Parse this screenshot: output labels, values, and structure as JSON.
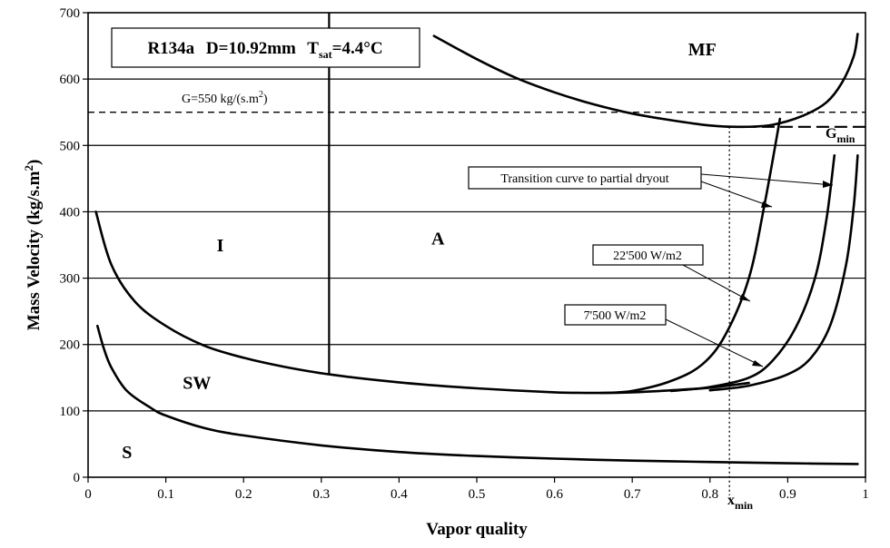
{
  "chart_data": {
    "type": "line",
    "title_box": {
      "fluid": "R134a",
      "diameter": "D=10.92mm",
      "tsat_prefix": "T",
      "tsat_sub": "sat",
      "tsat_value": "=4.4°C"
    },
    "xlabel": "Vapor quality",
    "ylabel_main": "Mass Velocity  (kg/s.m",
    "ylabel_sup": "2",
    "ylabel_end": ")",
    "xlim": [
      0,
      1
    ],
    "ylim": [
      0,
      700
    ],
    "xticks": [
      0,
      0.1,
      0.2,
      0.3,
      0.4,
      0.5,
      0.6,
      0.7,
      0.8,
      0.9,
      1
    ],
    "xtick_labels": [
      "0",
      "0.1",
      "0.2",
      "0.3",
      "0.4",
      "0.5",
      "0.6",
      "0.7",
      "0.8",
      "0.9",
      "1"
    ],
    "yticks": [
      0,
      100,
      200,
      300,
      400,
      500,
      600,
      700
    ],
    "ytick_labels": [
      "0",
      "100",
      "200",
      "300",
      "400",
      "500",
      "600",
      "700"
    ],
    "grid": "horizontal",
    "regions": [
      {
        "label": "MF",
        "x": 0.79,
        "y": 645
      },
      {
        "label": "I",
        "x": 0.17,
        "y": 350
      },
      {
        "label": "A",
        "x": 0.45,
        "y": 360
      },
      {
        "label": "SW",
        "x": 0.14,
        "y": 143
      },
      {
        "label": "S",
        "x": 0.05,
        "y": 38
      }
    ],
    "reference_lines": {
      "g550": {
        "value": 550,
        "label_main": "G=550 kg/(s.m",
        "label_sup": "2",
        "label_end": ")"
      },
      "gmin": {
        "value": 528,
        "x_start": 0.82,
        "label_main": "G",
        "label_sub": "min"
      },
      "xmin": {
        "value": 0.825,
        "label_main": "x",
        "label_sub": "min"
      },
      "ia_boundary": {
        "x": 0.31,
        "y_from": 155,
        "y_to": 700
      }
    },
    "annotations": [
      {
        "text": "Transition curve to partial dryout"
      },
      {
        "text": "22'500 W/m2"
      },
      {
        "text": "7'500 W/m2"
      }
    ],
    "series": [
      {
        "x": [
          0.01,
          0.03,
          0.06,
          0.1,
          0.15,
          0.2,
          0.25,
          0.31,
          0.4,
          0.5,
          0.6,
          0.66,
          0.7,
          0.75,
          0.8,
          0.85
        ],
        "y": [
          400,
          320,
          265,
          228,
          198,
          180,
          167,
          155,
          143,
          134,
          128,
          127,
          128,
          131,
          135,
          142
        ]
      },
      {
        "x": [
          0.66,
          0.7,
          0.75,
          0.79,
          0.82,
          0.85,
          0.87,
          0.89
        ],
        "y": [
          127,
          130,
          145,
          170,
          215,
          300,
          410,
          540
        ]
      },
      {
        "x": [
          0.75,
          0.8,
          0.85,
          0.88,
          0.91,
          0.935,
          0.95,
          0.96
        ],
        "y": [
          130,
          136,
          150,
          175,
          225,
          300,
          390,
          485
        ]
      },
      {
        "x": [
          0.8,
          0.85,
          0.9,
          0.93,
          0.955,
          0.975,
          0.985,
          0.99
        ],
        "y": [
          131,
          138,
          155,
          180,
          230,
          320,
          410,
          485
        ]
      },
      {
        "x": [
          0.445,
          0.5,
          0.55,
          0.6,
          0.65,
          0.7,
          0.75,
          0.8,
          0.84,
          0.88,
          0.92,
          0.95,
          0.97,
          0.985,
          0.99
        ],
        "y": [
          665,
          630,
          602,
          580,
          562,
          548,
          538,
          530,
          528,
          531,
          545,
          565,
          595,
          635,
          668
        ]
      },
      {
        "x": [
          0.012,
          0.02,
          0.03,
          0.05,
          0.08,
          0.1,
          0.15,
          0.2,
          0.3,
          0.4,
          0.5,
          0.6,
          0.7,
          0.8,
          0.9,
          0.99
        ],
        "y": [
          228,
          195,
          165,
          130,
          105,
          93,
          74,
          63,
          48,
          38,
          32,
          28,
          25,
          23,
          21,
          20
        ]
      }
    ]
  }
}
